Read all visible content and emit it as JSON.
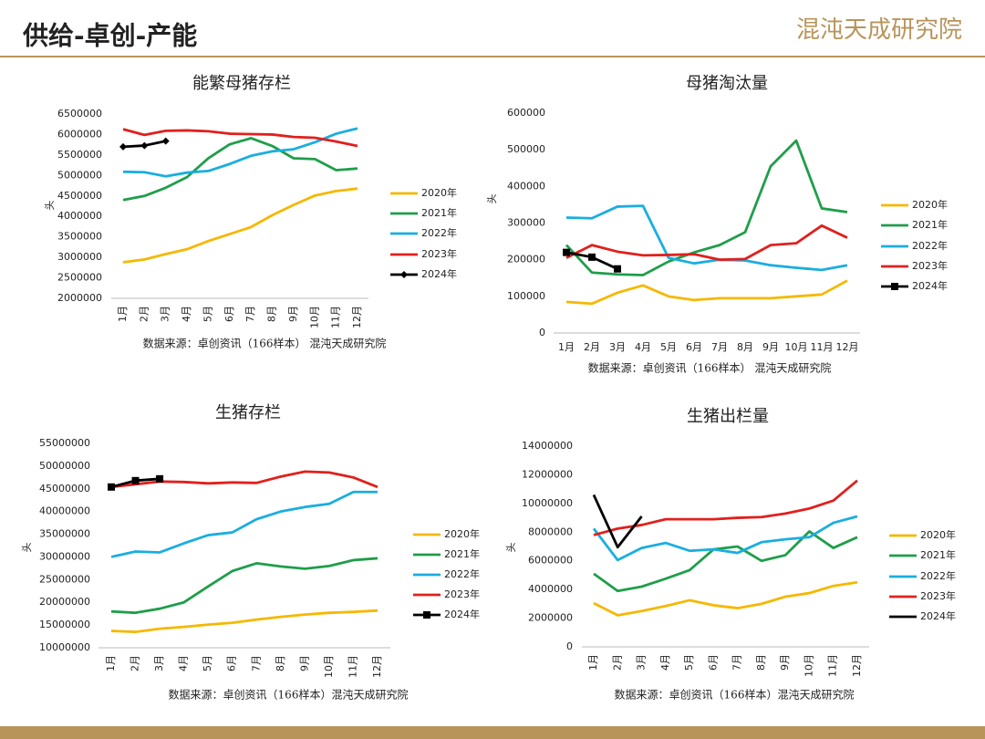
{
  "header": {
    "title": "供给-卓创-产能",
    "logo": "混沌天成研究院"
  },
  "chart_data": [
    {
      "type": "line",
      "title": "能繁母猪存栏",
      "y_label": "头",
      "note": "数据来源：卓创资讯（166样本） 混沌天成研究院",
      "categories": [
        "1月",
        "2月",
        "3月",
        "4月",
        "5月",
        "6月",
        "7月",
        "8月",
        "9月",
        "10月",
        "11月",
        "12月"
      ],
      "ylim": [
        2000000,
        6500000
      ],
      "yticks": [
        2000000,
        2500000,
        3000000,
        3500000,
        4000000,
        4500000,
        5000000,
        5500000,
        6000000,
        6500000
      ],
      "grid": false,
      "series": [
        {
          "name": "2020年",
          "color": "#f5b800",
          "values": [
            2880000,
            2950000,
            3080000,
            3200000,
            3400000,
            3570000,
            3740000,
            4030000,
            4280000,
            4510000,
            4620000,
            4680000
          ]
        },
        {
          "name": "2021年",
          "color": "#1f9e4a",
          "values": [
            4400000,
            4500000,
            4700000,
            4960000,
            5420000,
            5760000,
            5910000,
            5720000,
            5420000,
            5400000,
            5130000,
            5170000
          ]
        },
        {
          "name": "2022年",
          "color": "#1aaee0",
          "values": [
            5090000,
            5080000,
            4980000,
            5070000,
            5110000,
            5280000,
            5480000,
            5590000,
            5640000,
            5810000,
            6020000,
            6150000
          ]
        },
        {
          "name": "2023年",
          "color": "#e0201d",
          "values": [
            6130000,
            5990000,
            6090000,
            6100000,
            6080000,
            6020000,
            6010000,
            6000000,
            5940000,
            5920000,
            5830000,
            5720000
          ]
        },
        {
          "name": "2024年",
          "color": "#000000",
          "marker": "diamond",
          "values": [
            5700000,
            5730000,
            5840000,
            null,
            null,
            null,
            null,
            null,
            null,
            null,
            null,
            null
          ]
        }
      ]
    },
    {
      "type": "line",
      "title": "母猪淘汰量",
      "y_label": "头",
      "note": "数据来源：卓创资讯（166样本） 混沌天成研究院",
      "categories": [
        "1月",
        "2月",
        "3月",
        "4月",
        "5月",
        "6月",
        "7月",
        "8月",
        "9月",
        "10月",
        "11月",
        "12月"
      ],
      "ylim": [
        0,
        600000
      ],
      "yticks": [
        0,
        100000,
        200000,
        300000,
        400000,
        500000,
        600000
      ],
      "grid": false,
      "series": [
        {
          "name": "2020年",
          "color": "#f5b800",
          "values": [
            85000,
            80000,
            110000,
            130000,
            100000,
            90000,
            95000,
            95000,
            95000,
            100000,
            105000,
            143000
          ]
        },
        {
          "name": "2021年",
          "color": "#1f9e4a",
          "values": [
            240000,
            165000,
            160000,
            158000,
            195000,
            220000,
            240000,
            275000,
            455000,
            525000,
            340000,
            330000
          ]
        },
        {
          "name": "2022年",
          "color": "#1aaee0",
          "values": [
            315000,
            313000,
            345000,
            347000,
            205000,
            190000,
            200000,
            198000,
            185000,
            178000,
            172000,
            185000
          ]
        },
        {
          "name": "2023年",
          "color": "#e0201d",
          "values": [
            205000,
            240000,
            222000,
            212000,
            213000,
            215000,
            200000,
            202000,
            240000,
            245000,
            293000,
            260000
          ]
        },
        {
          "name": "2024年",
          "color": "#000000",
          "marker": "square",
          "values": [
            220000,
            207000,
            175000,
            null,
            null,
            null,
            null,
            null,
            null,
            null,
            null,
            null
          ]
        }
      ]
    },
    {
      "type": "line",
      "title": "生猪存栏",
      "y_label": "头",
      "note": "数据来源：卓创资讯（166样本）混沌天成研究院",
      "categories": [
        "1月",
        "2月",
        "3月",
        "4月",
        "5月",
        "6月",
        "7月",
        "8月",
        "9月",
        "10月",
        "11月",
        "12月"
      ],
      "ylim": [
        10000000,
        55000000
      ],
      "yticks": [
        10000000,
        15000000,
        20000000,
        25000000,
        30000000,
        35000000,
        40000000,
        45000000,
        50000000,
        55000000
      ],
      "grid": false,
      "series": [
        {
          "name": "2020年",
          "color": "#f5b800",
          "values": [
            13700000,
            13500000,
            14200000,
            14600000,
            15100000,
            15500000,
            16200000,
            16800000,
            17300000,
            17700000,
            17900000,
            18200000
          ]
        },
        {
          "name": "2021年",
          "color": "#1f9e4a",
          "values": [
            18000000,
            17700000,
            18600000,
            20000000,
            23500000,
            26900000,
            28600000,
            27900000,
            27400000,
            28000000,
            29300000,
            29700000
          ]
        },
        {
          "name": "2022年",
          "color": "#1aaee0",
          "values": [
            30000000,
            31200000,
            31000000,
            33000000,
            34800000,
            35400000,
            38300000,
            40000000,
            41000000,
            41700000,
            44300000,
            44300000
          ]
        },
        {
          "name": "2023年",
          "color": "#e0201d",
          "values": [
            45400000,
            46000000,
            46600000,
            46500000,
            46200000,
            46400000,
            46300000,
            47700000,
            48800000,
            48600000,
            47500000,
            45400000
          ]
        },
        {
          "name": "2024年",
          "color": "#000000",
          "marker": "square",
          "values": [
            45400000,
            46800000,
            47200000,
            null,
            null,
            null,
            null,
            null,
            null,
            null,
            null,
            null
          ]
        }
      ]
    },
    {
      "type": "line",
      "title": "生猪出栏量",
      "y_label": "头",
      "note": "数据来源：卓创资讯（166样本）混沌天成研究院",
      "categories": [
        "1月",
        "2月",
        "3月",
        "4月",
        "5月",
        "6月",
        "7月",
        "8月",
        "9月",
        "10月",
        "11月",
        "12月"
      ],
      "ylim": [
        0,
        14000000
      ],
      "yticks": [
        0,
        2000000,
        4000000,
        6000000,
        8000000,
        10000000,
        12000000,
        14000000
      ],
      "grid": false,
      "series": [
        {
          "name": "2020年",
          "color": "#f5b800",
          "values": [
            3050000,
            2200000,
            2500000,
            2850000,
            3250000,
            2900000,
            2700000,
            3000000,
            3500000,
            3750000,
            4250000,
            4500000
          ]
        },
        {
          "name": "2021年",
          "color": "#1f9e4a",
          "values": [
            5100000,
            3900000,
            4200000,
            4750000,
            5350000,
            6800000,
            7000000,
            6000000,
            6400000,
            8050000,
            6900000,
            7650000
          ]
        },
        {
          "name": "2022年",
          "color": "#1aaee0",
          "values": [
            8250000,
            6050000,
            6900000,
            7250000,
            6700000,
            6800000,
            6550000,
            7300000,
            7500000,
            7650000,
            8650000,
            9100000
          ]
        },
        {
          "name": "2023年",
          "color": "#e0201d",
          "values": [
            7800000,
            8250000,
            8500000,
            8900000,
            8900000,
            8900000,
            9000000,
            9050000,
            9300000,
            9650000,
            10200000,
            11600000
          ]
        },
        {
          "name": "2024年",
          "color": "#000000",
          "values": [
            10600000,
            6950000,
            9100000,
            null,
            null,
            null,
            null,
            null,
            null,
            null,
            null,
            null
          ]
        }
      ]
    }
  ]
}
